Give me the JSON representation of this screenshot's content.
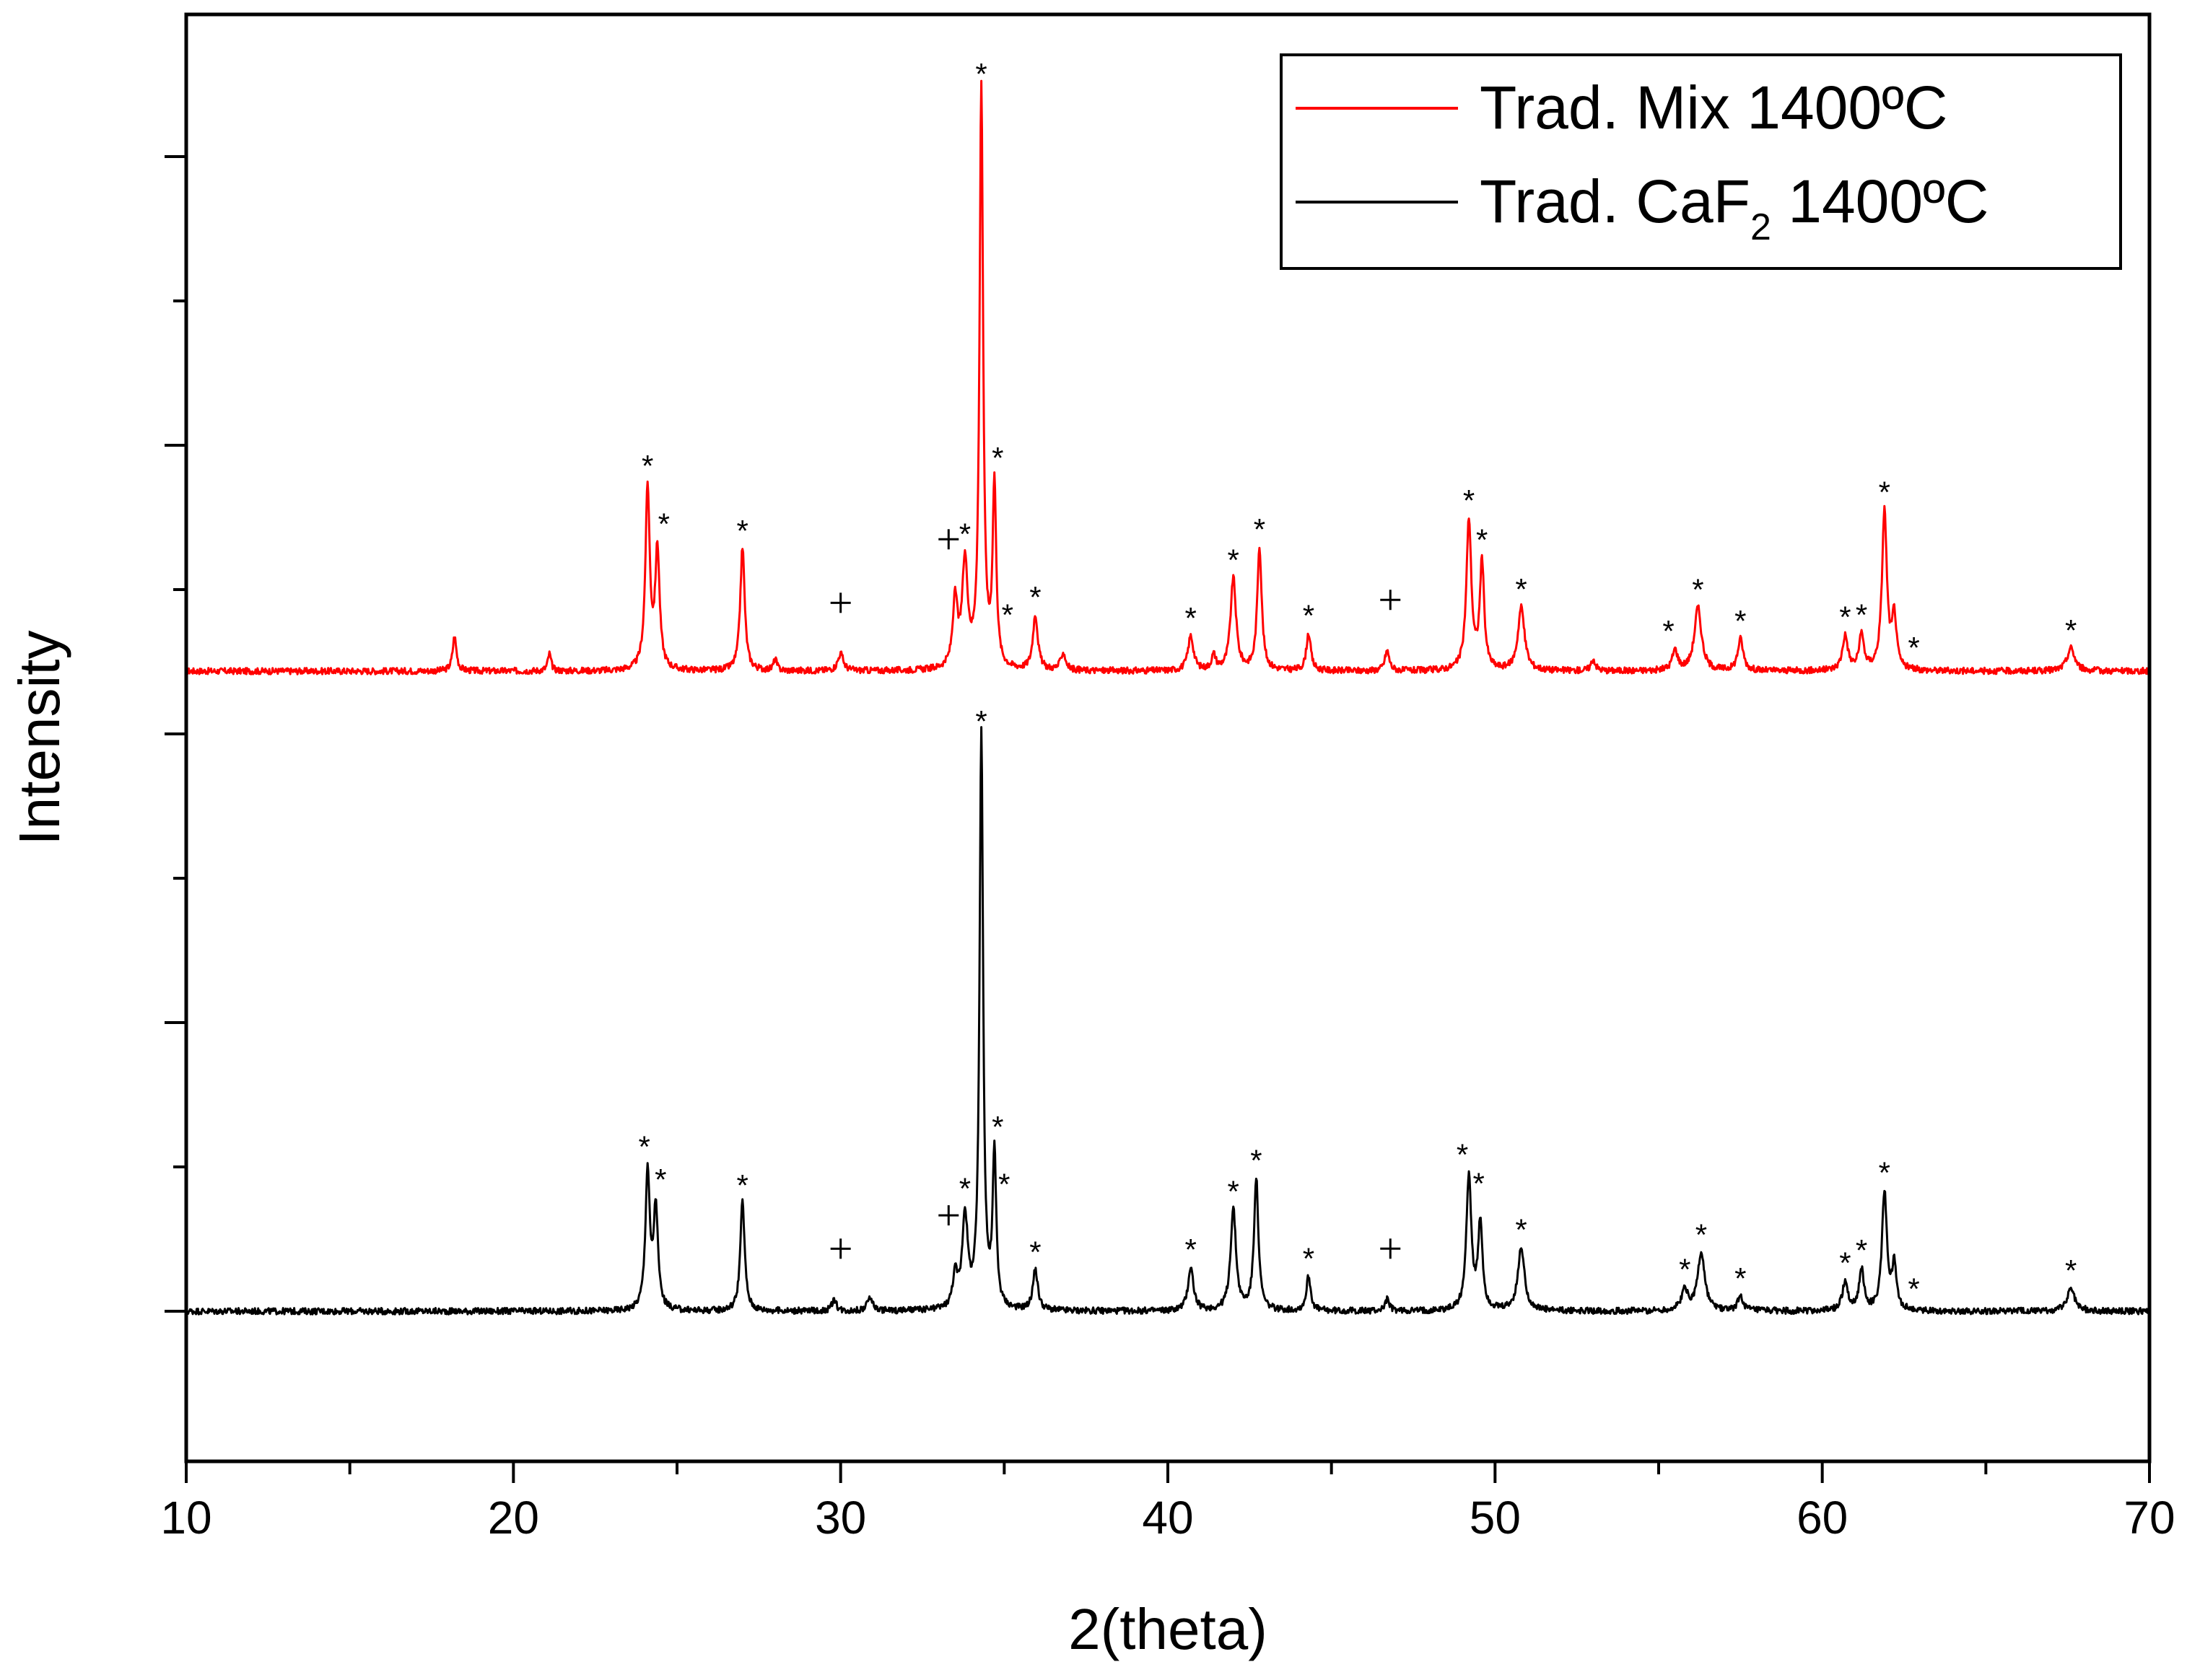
{
  "chart_data": {
    "type": "line",
    "xlabel": "2(theta)",
    "ylabel": "Intensity",
    "xlim": [
      10,
      70
    ],
    "x_ticks": [
      "10",
      "20",
      "30",
      "40",
      "50",
      "60",
      "70"
    ],
    "y_tick_labels_shown": false,
    "legend": {
      "placement": "top-right",
      "entries": [
        {
          "series": "mix",
          "text": "Trad. Mix 1400ºC"
        },
        {
          "series": "caf2",
          "text_main": "Trad. CaF",
          "text_sub": "2",
          "text_end": " 1400ºC"
        }
      ]
    },
    "series": [
      {
        "key": "mix",
        "name": "Trad. Mix 1400ºC",
        "color": "#ff0000",
        "baseline": 0.0,
        "peaks": [
          [
            18.2,
            0.12,
            0.07
          ],
          [
            21.1,
            0.06,
            0.06
          ],
          [
            24.1,
            0.63,
            0.08
          ],
          [
            24.4,
            0.41,
            0.08
          ],
          [
            27.0,
            0.43,
            0.08
          ],
          [
            28.0,
            0.04,
            0.06
          ],
          [
            30.0,
            0.06,
            0.1
          ],
          [
            33.5,
            0.23,
            0.09
          ],
          [
            33.8,
            0.36,
            0.1
          ],
          [
            34.3,
            2.02,
            0.065
          ],
          [
            34.7,
            0.63,
            0.065
          ],
          [
            35.95,
            0.19,
            0.09
          ],
          [
            36.8,
            0.06,
            0.09
          ],
          [
            40.7,
            0.12,
            0.1
          ],
          [
            41.4,
            0.05,
            0.08
          ],
          [
            42.0,
            0.32,
            0.1
          ],
          [
            42.8,
            0.43,
            0.08
          ],
          [
            44.3,
            0.13,
            0.08
          ],
          [
            46.7,
            0.07,
            0.08
          ],
          [
            49.2,
            0.52,
            0.09
          ],
          [
            49.6,
            0.37,
            0.08
          ],
          [
            50.8,
            0.22,
            0.12
          ],
          [
            53.0,
            0.04,
            0.08
          ],
          [
            55.5,
            0.07,
            0.1
          ],
          [
            56.2,
            0.22,
            0.13
          ],
          [
            57.5,
            0.11,
            0.1
          ],
          [
            60.7,
            0.12,
            0.1
          ],
          [
            61.2,
            0.12,
            0.09
          ],
          [
            61.9,
            0.55,
            0.09
          ],
          [
            62.2,
            0.18,
            0.08
          ],
          [
            67.6,
            0.08,
            0.14
          ]
        ],
        "asterisk_markers": [
          24.1,
          24.6,
          27.0,
          33.8,
          34.3,
          34.8,
          35.1,
          35.95,
          40.7,
          42.0,
          42.8,
          44.3,
          49.2,
          49.6,
          50.8,
          55.3,
          56.2,
          57.5,
          60.7,
          61.2,
          61.9,
          62.8,
          67.6
        ],
        "plus_markers": [
          30.0,
          33.3,
          46.8
        ]
      },
      {
        "key": "caf2",
        "name": "Trad. CaF2 1400ºC",
        "color": "#000000",
        "baseline": 0.0,
        "peaks": [
          [
            24.1,
            0.48,
            0.08
          ],
          [
            24.35,
            0.35,
            0.08
          ],
          [
            27.0,
            0.38,
            0.08
          ],
          [
            29.8,
            0.04,
            0.08
          ],
          [
            30.9,
            0.05,
            0.09
          ],
          [
            33.5,
            0.11,
            0.09
          ],
          [
            33.8,
            0.32,
            0.1
          ],
          [
            34.3,
            2.0,
            0.065
          ],
          [
            34.7,
            0.53,
            0.065
          ],
          [
            35.95,
            0.14,
            0.09
          ],
          [
            40.7,
            0.15,
            0.1
          ],
          [
            42.0,
            0.35,
            0.1
          ],
          [
            42.7,
            0.46,
            0.08
          ],
          [
            44.3,
            0.12,
            0.08
          ],
          [
            46.7,
            0.04,
            0.08
          ],
          [
            49.2,
            0.47,
            0.09
          ],
          [
            49.55,
            0.3,
            0.08
          ],
          [
            50.8,
            0.22,
            0.12
          ],
          [
            55.8,
            0.07,
            0.12
          ],
          [
            56.3,
            0.2,
            0.13
          ],
          [
            57.5,
            0.05,
            0.1
          ],
          [
            60.7,
            0.1,
            0.1
          ],
          [
            61.2,
            0.14,
            0.09
          ],
          [
            61.9,
            0.41,
            0.09
          ],
          [
            62.2,
            0.15,
            0.08
          ],
          [
            67.6,
            0.08,
            0.14
          ]
        ],
        "asterisk_markers": [
          24.0,
          24.5,
          27.0,
          33.8,
          34.3,
          34.8,
          35.0,
          35.95,
          40.7,
          42.0,
          42.7,
          44.3,
          49.0,
          49.5,
          50.8,
          55.8,
          56.3,
          57.5,
          60.7,
          61.2,
          61.9,
          62.8,
          67.6
        ],
        "plus_markers": [
          30.0,
          33.3,
          46.8
        ]
      }
    ]
  }
}
